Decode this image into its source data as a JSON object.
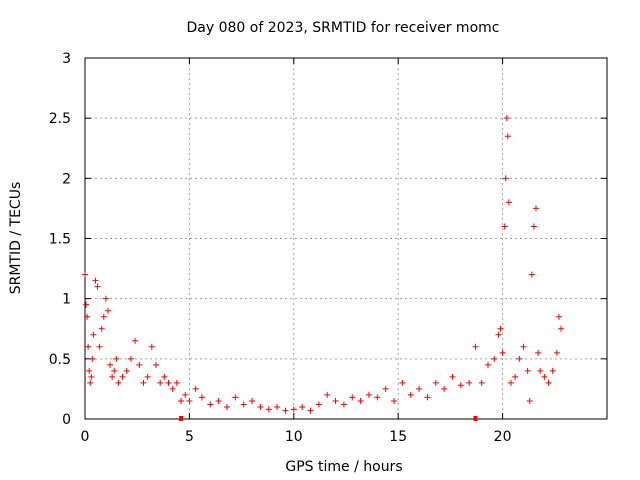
{
  "chart_data": {
    "type": "scatter",
    "title": "Day 080 of 2023, SRMTID for receiver momc",
    "xlabel": "GPS time / hours",
    "ylabel": "SRMTID / TECUs",
    "xlim": [
      0,
      25
    ],
    "ylim": [
      0,
      3
    ],
    "x_ticks": [
      0,
      5,
      10,
      15,
      20
    ],
    "y_ticks": [
      0,
      0.5,
      1,
      1.5,
      2,
      2.5,
      3
    ],
    "x_tick_labels": [
      "0",
      "5",
      "10",
      "15",
      "20"
    ],
    "y_tick_labels": [
      "0",
      "0.5",
      "1",
      "1.5",
      "2",
      "2.5",
      "3"
    ],
    "grid": true,
    "marker": "+",
    "series": [
      {
        "name": "SRMTID",
        "color": "#ff0000",
        "x": [
          0.0,
          0.05,
          0.1,
          0.15,
          0.2,
          0.25,
          0.3,
          0.35,
          0.4,
          0.5,
          0.6,
          0.7,
          0.8,
          0.9,
          1.0,
          1.1,
          1.2,
          1.3,
          1.4,
          1.5,
          1.6,
          1.8,
          2.0,
          2.2,
          2.4,
          2.6,
          2.8,
          3.0,
          3.2,
          3.4,
          3.6,
          3.8,
          4.0,
          4.2,
          4.4,
          4.6,
          4.8,
          5.0,
          5.3,
          5.6,
          6.0,
          6.4,
          6.8,
          7.2,
          7.6,
          8.0,
          8.4,
          8.8,
          9.2,
          9.6,
          10.0,
          10.4,
          10.8,
          11.2,
          11.6,
          12.0,
          12.4,
          12.8,
          13.2,
          13.6,
          14.0,
          14.4,
          14.8,
          15.2,
          15.6,
          16.0,
          16.4,
          16.8,
          17.2,
          17.6,
          18.0,
          18.4,
          18.7,
          19.0,
          19.3,
          19.6,
          19.8,
          19.9,
          20.0,
          20.1,
          20.15,
          20.2,
          20.25,
          20.3,
          20.4,
          20.6,
          20.8,
          21.0,
          21.2,
          21.3,
          21.4,
          21.5,
          21.6,
          21.7,
          21.8,
          22.0,
          22.2,
          22.4,
          22.6,
          22.7,
          22.8
        ],
        "values": [
          1.2,
          0.95,
          0.85,
          0.6,
          0.4,
          0.3,
          0.35,
          0.5,
          0.7,
          1.15,
          1.1,
          0.6,
          0.75,
          0.85,
          1.0,
          0.9,
          0.45,
          0.35,
          0.4,
          0.5,
          0.3,
          0.35,
          0.4,
          0.5,
          0.65,
          0.45,
          0.3,
          0.35,
          0.6,
          0.45,
          0.3,
          0.35,
          0.3,
          0.25,
          0.3,
          0.15,
          0.2,
          0.15,
          0.25,
          0.18,
          0.12,
          0.15,
          0.1,
          0.18,
          0.12,
          0.15,
          0.1,
          0.08,
          0.1,
          0.07,
          0.08,
          0.1,
          0.07,
          0.12,
          0.2,
          0.15,
          0.12,
          0.18,
          0.15,
          0.2,
          0.18,
          0.25,
          0.15,
          0.3,
          0.2,
          0.25,
          0.18,
          0.3,
          0.25,
          0.35,
          0.28,
          0.3,
          0.6,
          0.3,
          0.45,
          0.5,
          0.7,
          0.75,
          0.55,
          1.6,
          2.0,
          2.5,
          2.35,
          1.8,
          0.3,
          0.35,
          0.5,
          0.6,
          0.4,
          0.15,
          1.2,
          1.6,
          1.75,
          0.55,
          0.4,
          0.35,
          0.3,
          0.4,
          0.55,
          0.85,
          0.75
        ]
      }
    ],
    "x_axis_markers": [
      4.6,
      18.7
    ]
  }
}
